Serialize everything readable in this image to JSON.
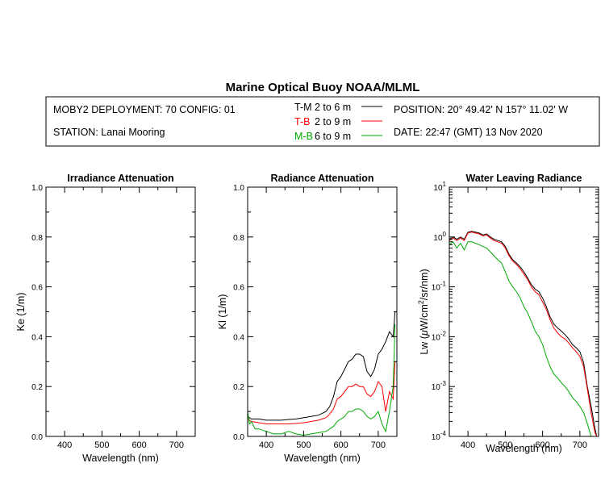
{
  "header": {
    "title": "Marine Optical Buoy NOAA/MLML",
    "deployment": "MOBY2 DEPLOYMENT: 70 CONFIG: 01",
    "station": "STATION: Lanai Mooring",
    "position": "POSITION: 20° 49.42' N   157° 11.02' W",
    "date": "DATE: 22:47 (GMT) 13 Nov 2020",
    "legend": [
      {
        "code": "T-M",
        "depth": "2 to 6  m",
        "color": "#000000"
      },
      {
        "code": "T-B",
        "depth": "2 to 9  m",
        "color": "#ff0000"
      },
      {
        "code": "M-B",
        "depth": "6 to 9  m",
        "color": "#00aa00"
      }
    ]
  },
  "chart_data": [
    {
      "type": "line",
      "title": "Irradiance Attenuation",
      "xlabel": "Wavelength (nm)",
      "ylabel": "Ke  (1/m)",
      "xlim": [
        350,
        750
      ],
      "ylim": [
        0,
        1.0
      ],
      "xticks": [
        400,
        500,
        600,
        700
      ],
      "yticks": [
        0.0,
        0.2,
        0.4,
        0.6,
        0.8,
        1.0
      ],
      "ytick_labels": [
        "0.0",
        "0.2",
        "0.4",
        "0.6",
        "0.8",
        "1.0"
      ],
      "series": []
    },
    {
      "type": "line",
      "title": "Radiance Attenuation",
      "xlabel": "Wavelength (nm)",
      "ylabel": "Kl  (1/m)",
      "xlim": [
        350,
        750
      ],
      "ylim": [
        0,
        1.0
      ],
      "xticks": [
        400,
        500,
        600,
        700
      ],
      "yticks": [
        0.0,
        0.2,
        0.4,
        0.6,
        0.8,
        1.0
      ],
      "ytick_labels": [
        "0.0",
        "0.2",
        "0.4",
        "0.6",
        "0.8",
        "1.0"
      ],
      "series": [
        {
          "color": "#000000",
          "x": [
            350,
            360,
            380,
            400,
            420,
            440,
            460,
            480,
            500,
            520,
            540,
            560,
            570,
            580,
            590,
            600,
            610,
            620,
            630,
            640,
            650,
            660,
            670,
            680,
            690,
            700,
            710,
            720,
            730,
            740,
            745
          ],
          "y": [
            0.08,
            0.07,
            0.07,
            0.065,
            0.065,
            0.065,
            0.068,
            0.07,
            0.075,
            0.08,
            0.085,
            0.1,
            0.12,
            0.16,
            0.22,
            0.24,
            0.27,
            0.3,
            0.31,
            0.33,
            0.33,
            0.32,
            0.26,
            0.24,
            0.27,
            0.33,
            0.35,
            0.38,
            0.42,
            0.4,
            0.5
          ]
        },
        {
          "color": "#ff0000",
          "x": [
            350,
            360,
            380,
            400,
            420,
            440,
            460,
            480,
            500,
            520,
            540,
            560,
            570,
            580,
            590,
            600,
            610,
            620,
            630,
            640,
            650,
            660,
            670,
            680,
            690,
            700,
            710,
            720,
            730,
            740,
            745
          ],
          "y": [
            0.07,
            0.06,
            0.055,
            0.05,
            0.05,
            0.05,
            0.05,
            0.052,
            0.055,
            0.06,
            0.065,
            0.075,
            0.09,
            0.11,
            0.15,
            0.16,
            0.18,
            0.2,
            0.2,
            0.21,
            0.2,
            0.2,
            0.17,
            0.16,
            0.18,
            0.22,
            0.2,
            0.1,
            0.18,
            0.15,
            0.3
          ]
        },
        {
          "color": "#00aa00",
          "x": [
            350,
            355,
            360,
            370,
            380,
            400,
            420,
            440,
            460,
            480,
            500,
            520,
            540,
            560,
            570,
            580,
            590,
            600,
            610,
            620,
            630,
            640,
            650,
            660,
            670,
            680,
            690,
            700,
            710,
            720,
            730,
            740,
            745
          ],
          "y": [
            0.1,
            0.05,
            0.06,
            0.03,
            0.03,
            0.02,
            0.01,
            0.01,
            0.02,
            0.01,
            0.005,
            0.01,
            0.015,
            0.02,
            0.03,
            0.04,
            0.06,
            0.07,
            0.08,
            0.1,
            0.1,
            0.11,
            0.11,
            0.1,
            0.08,
            0.07,
            0.08,
            0.1,
            0.05,
            0.02,
            0.1,
            0.2,
            0.45
          ]
        }
      ]
    },
    {
      "type": "line",
      "title": "Water Leaving Radiance",
      "xlabel": "Wavelength (nm)",
      "ylabel_main": "Lw  (",
      "ylabel_mu": "μ",
      "ylabel_unit": "W/cm",
      "ylabel_sup": "2",
      "ylabel_tail": "/sr/nm)",
      "yscale": "log",
      "xlim": [
        350,
        750
      ],
      "ylim": [
        0.0001,
        10
      ],
      "xticks": [
        400,
        500,
        600,
        700
      ],
      "yticks": [
        0.0001,
        0.001,
        0.01,
        0.1,
        1,
        10
      ],
      "ytick_base": "10",
      "ytick_exps": [
        "-4",
        "-3",
        "-2",
        "-1",
        "0",
        "1"
      ],
      "series": [
        {
          "color": "#000000",
          "x": [
            350,
            360,
            370,
            380,
            390,
            400,
            410,
            420,
            430,
            440,
            450,
            460,
            470,
            480,
            490,
            500,
            510,
            520,
            530,
            540,
            550,
            560,
            570,
            580,
            590,
            600,
            610,
            620,
            630,
            640,
            650,
            660,
            670,
            680,
            690,
            700,
            710,
            720,
            730,
            740,
            745
          ],
          "y": [
            0.9,
            1.0,
            0.9,
            1.0,
            0.9,
            1.25,
            1.3,
            1.25,
            1.2,
            1.1,
            1.15,
            1.0,
            0.9,
            0.85,
            0.8,
            0.65,
            0.45,
            0.35,
            0.3,
            0.25,
            0.2,
            0.15,
            0.11,
            0.09,
            0.08,
            0.06,
            0.04,
            0.025,
            0.018,
            0.015,
            0.013,
            0.011,
            0.009,
            0.007,
            0.006,
            0.005,
            0.003,
            0.001,
            0.0004,
            0.00015,
            0.0001
          ]
        },
        {
          "color": "#ff0000",
          "x": [
            350,
            360,
            370,
            380,
            390,
            400,
            410,
            420,
            430,
            440,
            450,
            460,
            470,
            480,
            490,
            500,
            510,
            520,
            530,
            540,
            550,
            560,
            570,
            580,
            590,
            600,
            610,
            620,
            630,
            640,
            650,
            660,
            670,
            680,
            690,
            700,
            710,
            720,
            730,
            740,
            745
          ],
          "y": [
            0.85,
            0.95,
            0.85,
            0.95,
            0.85,
            1.2,
            1.25,
            1.2,
            1.15,
            1.05,
            1.1,
            0.95,
            0.85,
            0.8,
            0.75,
            0.6,
            0.42,
            0.33,
            0.28,
            0.23,
            0.18,
            0.14,
            0.1,
            0.08,
            0.07,
            0.05,
            0.035,
            0.022,
            0.015,
            0.012,
            0.01,
            0.009,
            0.0075,
            0.006,
            0.005,
            0.004,
            0.0025,
            0.0009,
            0.0003,
            0.00012,
            0.0001
          ]
        },
        {
          "color": "#00aa00",
          "x": [
            350,
            360,
            370,
            380,
            390,
            400,
            410,
            420,
            430,
            440,
            450,
            460,
            470,
            480,
            490,
            500,
            510,
            520,
            530,
            540,
            550,
            560,
            570,
            580,
            590,
            600,
            610,
            620,
            630,
            640,
            650,
            660,
            670,
            680,
            690,
            700,
            710,
            720,
            730,
            740
          ],
          "y": [
            0.7,
            0.8,
            0.6,
            0.75,
            0.55,
            0.8,
            0.8,
            0.75,
            0.7,
            0.65,
            0.6,
            0.5,
            0.42,
            0.35,
            0.3,
            0.2,
            0.13,
            0.1,
            0.08,
            0.06,
            0.04,
            0.03,
            0.02,
            0.013,
            0.01,
            0.007,
            0.004,
            0.0025,
            0.0018,
            0.0015,
            0.0012,
            0.001,
            0.0008,
            0.0006,
            0.0005,
            0.0004,
            0.0003,
            0.00018,
            0.0001,
            0.0001
          ]
        }
      ]
    }
  ]
}
